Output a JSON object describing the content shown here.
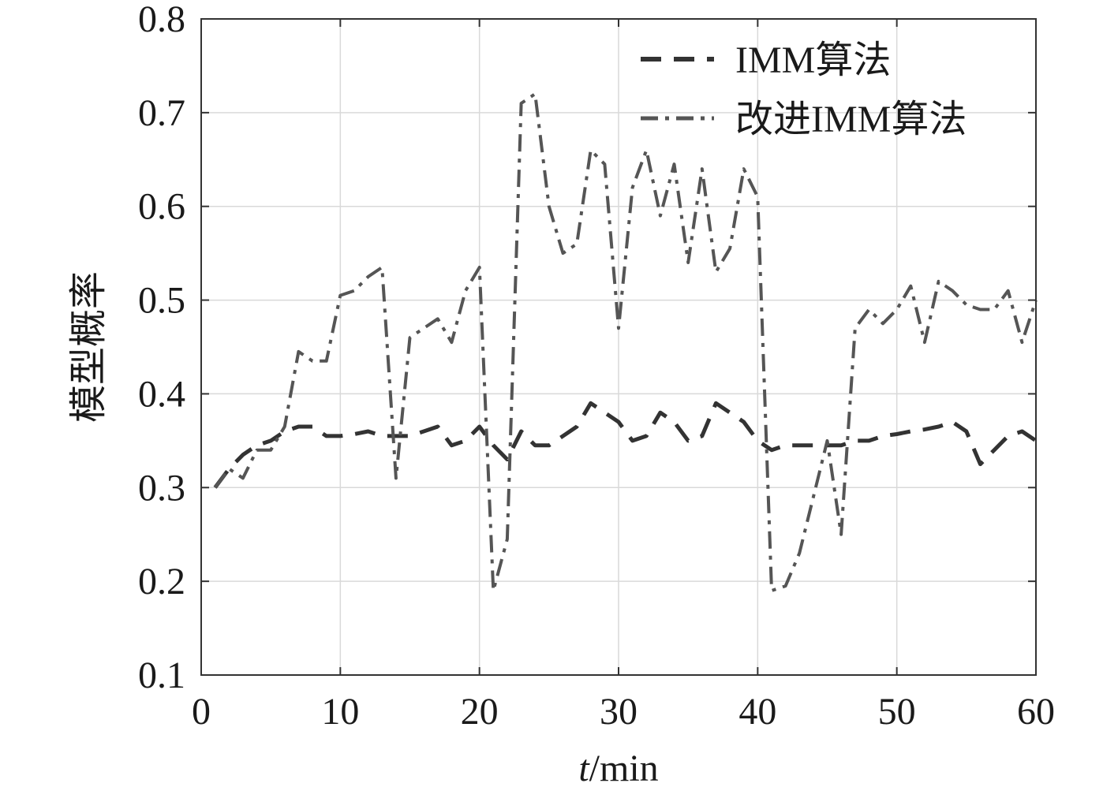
{
  "chart_data": {
    "type": "line",
    "title": "",
    "xlabel_italic": "t",
    "xlabel_unit": "/min",
    "ylabel": "模型概率",
    "xlim": [
      0,
      60
    ],
    "ylim": [
      0.1,
      0.8
    ],
    "xticks": [
      0,
      10,
      20,
      30,
      40,
      50,
      60
    ],
    "xtick_labels": [
      "0",
      "10",
      "20",
      "30",
      "40",
      "50",
      "60"
    ],
    "yticks": [
      0.1,
      0.2,
      0.3,
      0.4,
      0.5,
      0.6,
      0.7,
      0.8
    ],
    "ytick_labels": [
      "0.1",
      "0.2",
      "0.3",
      "0.4",
      "0.5",
      "0.6",
      "0.7",
      "0.8"
    ],
    "grid": true,
    "legend_position": "top-right",
    "series": [
      {
        "name": "IMM算法",
        "style": "dashed",
        "color": "#333333",
        "x": [
          1,
          2,
          3,
          4,
          5,
          6,
          7,
          8,
          9,
          10,
          11,
          12,
          13,
          14,
          15,
          16,
          17,
          18,
          19,
          20,
          21,
          22,
          23,
          24,
          25,
          26,
          27,
          28,
          29,
          30,
          31,
          32,
          33,
          34,
          35,
          36,
          37,
          38,
          39,
          40,
          41,
          42,
          43,
          44,
          45,
          46,
          47,
          48,
          49,
          50,
          51,
          52,
          53,
          54,
          55,
          56,
          57,
          58,
          59,
          60
        ],
        "values": [
          0.3,
          0.32,
          0.335,
          0.345,
          0.35,
          0.36,
          0.365,
          0.365,
          0.355,
          0.355,
          0.357,
          0.36,
          0.355,
          0.355,
          0.355,
          0.36,
          0.365,
          0.345,
          0.35,
          0.365,
          0.345,
          0.33,
          0.36,
          0.345,
          0.345,
          0.355,
          0.365,
          0.39,
          0.38,
          0.37,
          0.35,
          0.355,
          0.38,
          0.37,
          0.35,
          0.355,
          0.39,
          0.38,
          0.37,
          0.35,
          0.34,
          0.345,
          0.345,
          0.345,
          0.345,
          0.345,
          0.35,
          0.35,
          0.355,
          0.357,
          0.36,
          0.362,
          0.365,
          0.37,
          0.36,
          0.325,
          0.34,
          0.355,
          0.36,
          0.35
        ]
      },
      {
        "name": "改进IMM算法",
        "style": "dashdot",
        "color": "#555555",
        "x": [
          1,
          2,
          3,
          4,
          5,
          6,
          7,
          8,
          9,
          10,
          11,
          12,
          13,
          14,
          15,
          16,
          17,
          18,
          19,
          20,
          21,
          22,
          23,
          24,
          25,
          26,
          27,
          28,
          29,
          30,
          31,
          32,
          33,
          34,
          35,
          36,
          37,
          38,
          39,
          40,
          41,
          42,
          43,
          44,
          45,
          46,
          47,
          48,
          49,
          50,
          51,
          52,
          53,
          54,
          55,
          56,
          57,
          58,
          59,
          60
        ],
        "values": [
          0.3,
          0.32,
          0.31,
          0.34,
          0.34,
          0.365,
          0.445,
          0.435,
          0.435,
          0.505,
          0.51,
          0.525,
          0.535,
          0.31,
          0.46,
          0.47,
          0.48,
          0.455,
          0.51,
          0.535,
          0.19,
          0.245,
          0.71,
          0.72,
          0.6,
          0.55,
          0.56,
          0.66,
          0.645,
          0.47,
          0.62,
          0.66,
          0.59,
          0.645,
          0.54,
          0.64,
          0.53,
          0.555,
          0.64,
          0.61,
          0.19,
          0.195,
          0.23,
          0.29,
          0.35,
          0.25,
          0.47,
          0.49,
          0.475,
          0.49,
          0.515,
          0.455,
          0.52,
          0.51,
          0.495,
          0.49,
          0.49,
          0.51,
          0.455,
          0.5
        ]
      }
    ]
  }
}
